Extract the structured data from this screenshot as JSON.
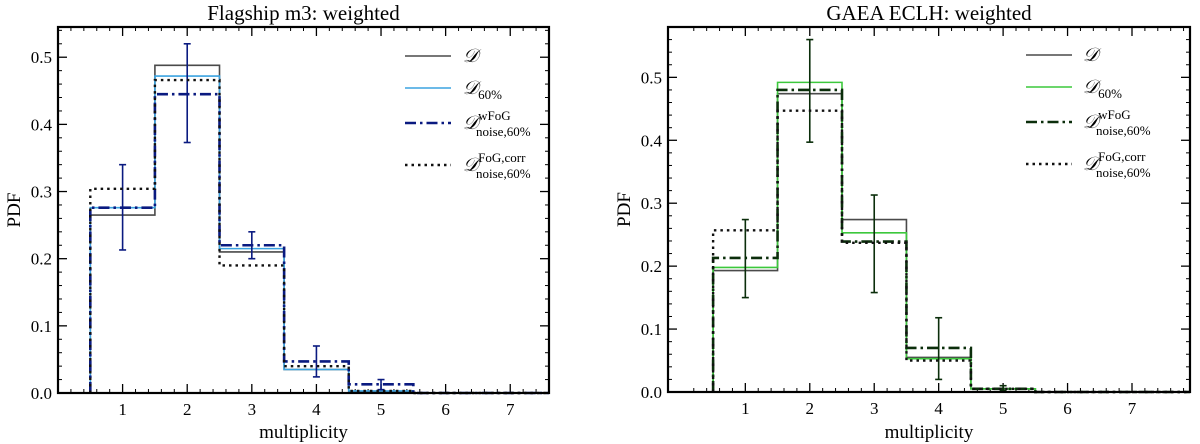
{
  "chart_data": [
    {
      "type": "line",
      "style": "step-histogram",
      "title": "Flagship m3: weighted",
      "xlabel": "multiplicity",
      "ylabel": "PDF",
      "xlim": [
        0,
        7.6
      ],
      "ylim": [
        0,
        0.545
      ],
      "xticks": [
        "1",
        "2",
        "3",
        "4",
        "5",
        "6",
        "7"
      ],
      "yticks": [
        "0.0",
        "0.1",
        "0.2",
        "0.3",
        "0.4",
        "0.5"
      ],
      "legend_position": "top-right",
      "categories": [
        1,
        2,
        3,
        4,
        5
      ],
      "series": [
        {
          "name": "D",
          "label": {
            "base": "𝒟",
            "sub": "",
            "sup": ""
          },
          "color": "#4a4a4a",
          "dash": "solid",
          "values": [
            0.265,
            0.488,
            0.21,
            0.035,
            0.002
          ]
        },
        {
          "name": "D_60%",
          "label": {
            "base": "𝒟",
            "sub": "60%",
            "sup": ""
          },
          "color": "#3ba3e0",
          "dash": "solid",
          "values": [
            0.276,
            0.472,
            0.215,
            0.035,
            0.003
          ]
        },
        {
          "name": "D^wFoG_noise,60%",
          "label": {
            "base": "𝒟",
            "sub": "noise,60%",
            "sup": "wFoG"
          },
          "color": "#0a1a80",
          "dash": "dashdot",
          "values": [
            0.276,
            0.445,
            0.22,
            0.047,
            0.013
          ],
          "errors": [
            [
              0.213,
              0.34
            ],
            [
              0.373,
              0.52
            ],
            [
              0.2,
              0.24
            ],
            [
              0.024,
              0.07
            ],
            [
              0.005,
              0.02
            ]
          ]
        },
        {
          "name": "D^FoG,corr_noise,60%",
          "label": {
            "base": "𝒟",
            "sub": "noise,60%",
            "sup": "FoG,corr"
          },
          "color": "#111111",
          "dash": "dotted",
          "values": [
            0.304,
            0.466,
            0.19,
            0.04,
            0.003
          ]
        }
      ]
    },
    {
      "type": "line",
      "style": "step-histogram",
      "title": "GAEA ECLH: weighted",
      "xlabel": "multiplicity",
      "ylabel": "PDF",
      "xlim": [
        -0.2,
        7.9
      ],
      "ylim": [
        0,
        0.58
      ],
      "xticks": [
        "1",
        "2",
        "3",
        "4",
        "5",
        "6",
        "7"
      ],
      "yticks": [
        "0.0",
        "0.1",
        "0.2",
        "0.3",
        "0.4",
        "0.5"
      ],
      "legend_position": "top-right",
      "categories": [
        1,
        2,
        3,
        4,
        5
      ],
      "series": [
        {
          "name": "D",
          "label": {
            "base": "𝒟",
            "sub": "",
            "sup": ""
          },
          "color": "#4a4a4a",
          "dash": "solid",
          "values": [
            0.193,
            0.474,
            0.274,
            0.055,
            0.005
          ]
        },
        {
          "name": "D_60%",
          "label": {
            "base": "𝒟",
            "sub": "60%",
            "sup": ""
          },
          "color": "#3cc83c",
          "dash": "solid",
          "values": [
            0.198,
            0.492,
            0.253,
            0.053,
            0.005
          ]
        },
        {
          "name": "D^wFoG_noise,60%",
          "label": {
            "base": "𝒟",
            "sub": "noise,60%",
            "sup": "wFoG"
          },
          "color": "#0b2e0b",
          "dash": "dashdot",
          "values": [
            0.213,
            0.48,
            0.239,
            0.07,
            0.005
          ],
          "errors": [
            [
              0.15,
              0.274
            ],
            [
              0.397,
              0.56
            ],
            [
              0.158,
              0.313
            ],
            [
              0.02,
              0.118
            ],
            [
              0.002,
              0.01
            ]
          ]
        },
        {
          "name": "D^FoG,corr_noise,60%",
          "label": {
            "base": "𝒟",
            "sub": "noise,60%",
            "sup": "FoG,corr"
          },
          "color": "#111111",
          "dash": "dotted",
          "values": [
            0.257,
            0.447,
            0.237,
            0.05,
            0.005
          ]
        }
      ]
    }
  ]
}
